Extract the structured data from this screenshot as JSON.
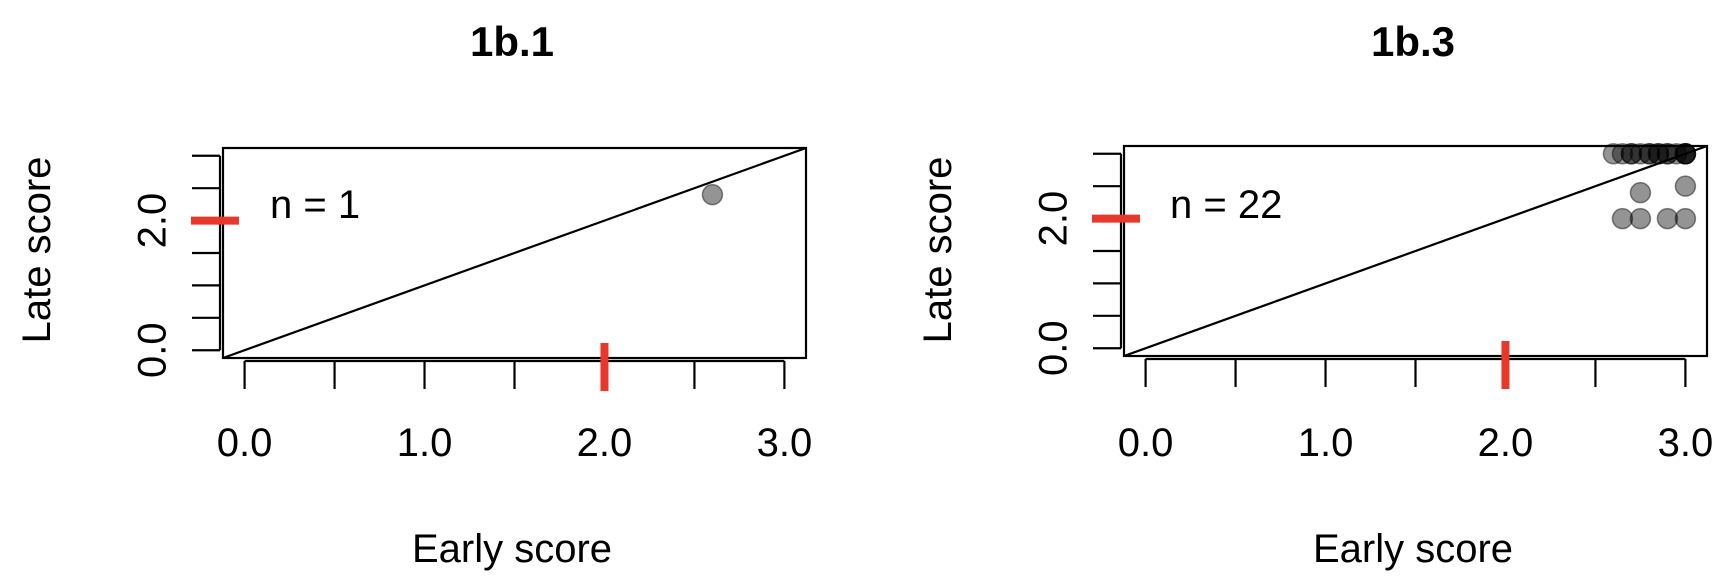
{
  "colors": {
    "reference_marker": "#e8372b",
    "point": "#000000",
    "axis": "#000000"
  },
  "chart_data": [
    {
      "type": "scatter",
      "title": "1b.1",
      "xlabel": "Early score",
      "ylabel": "Late score",
      "x_tick_labels": [
        "0.0",
        "1.0",
        "2.0",
        "3.0"
      ],
      "y_tick_labels": [
        "0.0",
        "2.0"
      ],
      "xlim": [
        -0.12,
        3.12
      ],
      "ylim": [
        -0.12,
        3.12
      ],
      "diagonal": true,
      "annotation": "n = 1",
      "reference_x": 2.0,
      "reference_y": 2.0,
      "points": [
        {
          "x": 2.6,
          "y": 2.4
        }
      ]
    },
    {
      "type": "scatter",
      "title": "1b.3",
      "xlabel": "Early score",
      "ylabel": "Late score",
      "x_tick_labels": [
        "0.0",
        "1.0",
        "2.0",
        "3.0"
      ],
      "y_tick_labels": [
        "0.0",
        "2.0"
      ],
      "xlim": [
        -0.12,
        3.12
      ],
      "ylim": [
        -0.12,
        3.12
      ],
      "diagonal": true,
      "annotation": "n = 22",
      "reference_x": 2.0,
      "reference_y": 2.0,
      "points": [
        {
          "x": 2.6,
          "y": 3.0
        },
        {
          "x": 2.65,
          "y": 3.0
        },
        {
          "x": 2.7,
          "y": 3.0
        },
        {
          "x": 2.75,
          "y": 3.0
        },
        {
          "x": 2.8,
          "y": 3.0
        },
        {
          "x": 2.8,
          "y": 3.0
        },
        {
          "x": 2.85,
          "y": 3.0
        },
        {
          "x": 2.85,
          "y": 3.0
        },
        {
          "x": 2.9,
          "y": 3.0
        },
        {
          "x": 2.9,
          "y": 3.0
        },
        {
          "x": 2.95,
          "y": 3.0
        },
        {
          "x": 3.0,
          "y": 3.0
        },
        {
          "x": 3.0,
          "y": 3.0
        },
        {
          "x": 3.0,
          "y": 3.0
        },
        {
          "x": 3.0,
          "y": 3.0
        },
        {
          "x": 2.75,
          "y": 2.4
        },
        {
          "x": 3.0,
          "y": 2.5
        },
        {
          "x": 2.65,
          "y": 2.0
        },
        {
          "x": 2.75,
          "y": 2.0
        },
        {
          "x": 2.9,
          "y": 2.0
        },
        {
          "x": 3.0,
          "y": 2.0
        },
        {
          "x": 2.7,
          "y": 3.0
        }
      ]
    }
  ]
}
